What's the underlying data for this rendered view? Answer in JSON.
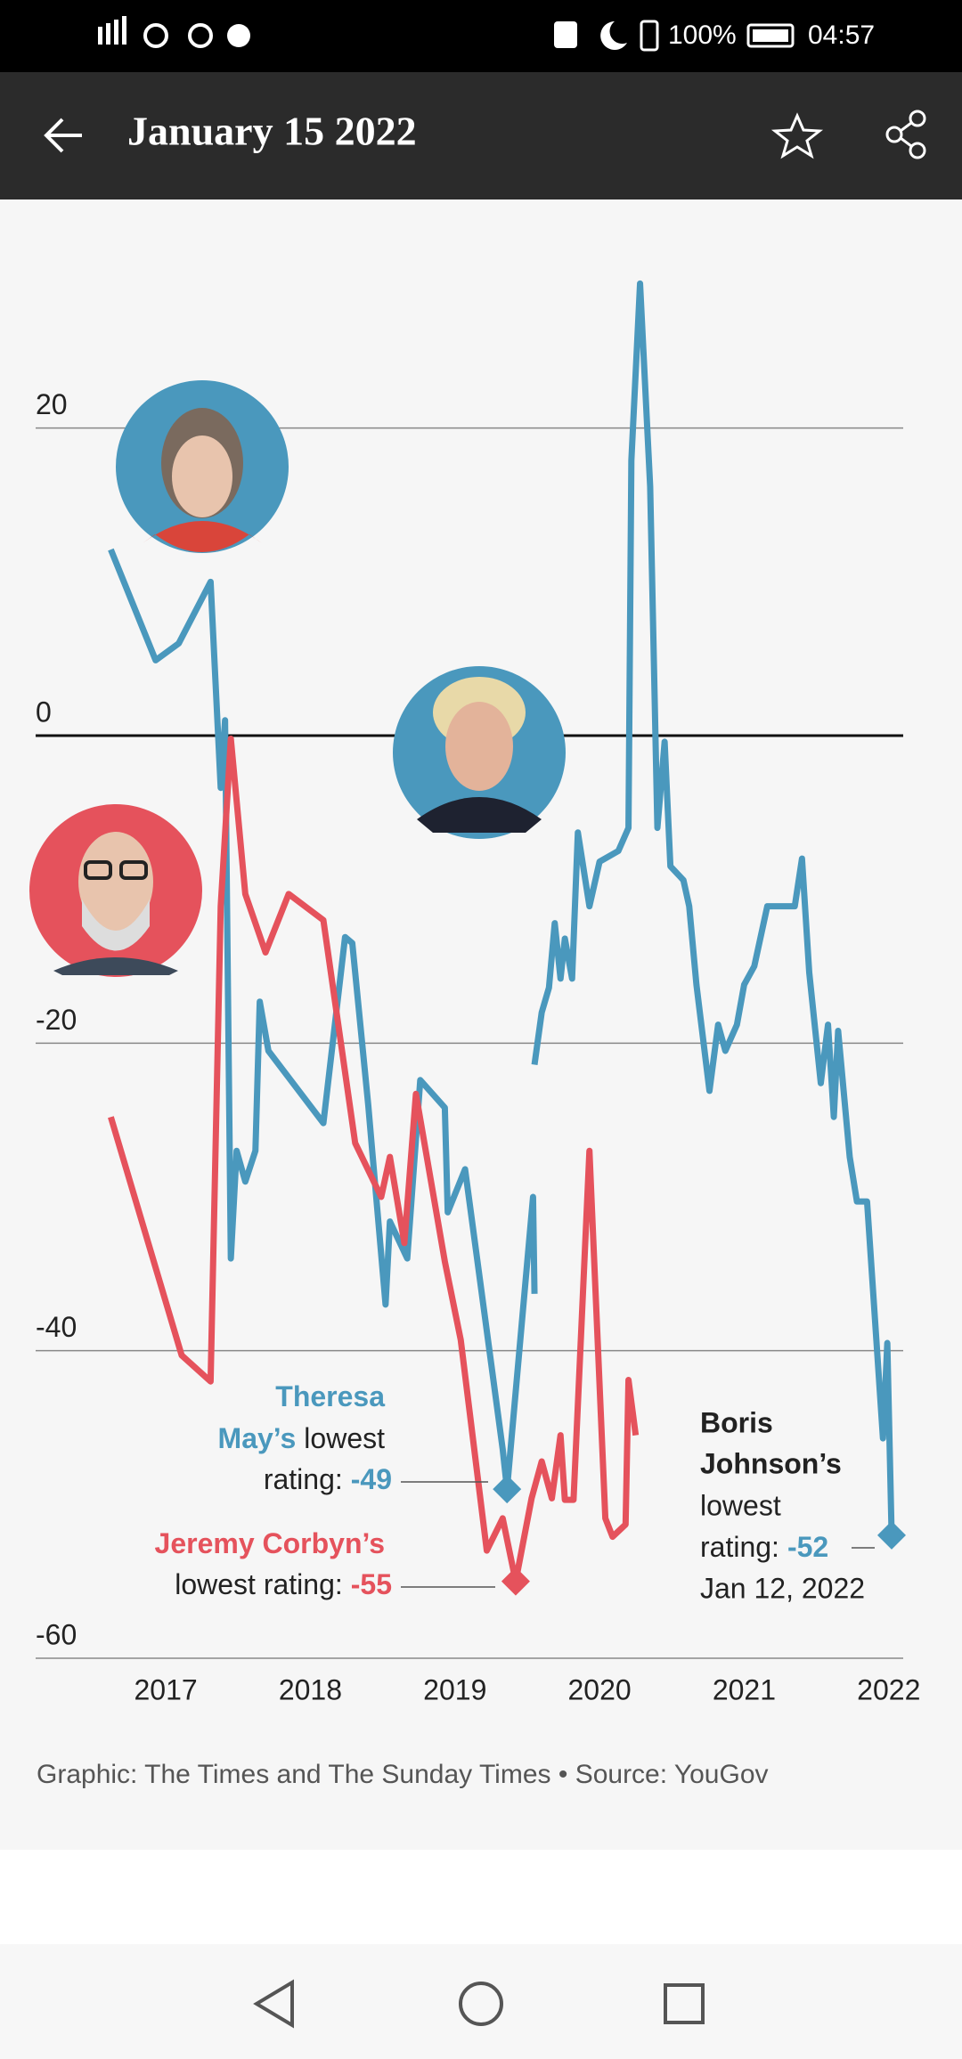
{
  "status_bar": {
    "battery": "100%",
    "time": "04:57"
  },
  "app_bar": {
    "title": "January 15 2022"
  },
  "chart_data": {
    "type": "line",
    "xlim": [
      2016.1,
      2022.1
    ],
    "xticks": [
      2017,
      2018,
      2019,
      2020,
      2021,
      2022
    ],
    "ylim": [
      -60,
      30
    ],
    "yticks": [
      20,
      0,
      -20,
      -40,
      -60
    ],
    "grid": true,
    "series": [
      {
        "color": "#4a98bd",
        "x": [
          2016.62,
          2016.93,
          2017.09,
          2017.31,
          2017.38,
          2017.41,
          2017.45,
          2017.49,
          2017.55,
          2017.62,
          2017.65,
          2017.71,
          2018.09,
          2018.24,
          2018.29,
          2018.4,
          2018.52,
          2018.55,
          2018.67,
          2018.76,
          2018.93,
          2018.95,
          2019.07,
          2019.33,
          2019.36,
          2019.54,
          2019.55
        ],
        "values": [
          12.1,
          4.9,
          6,
          10,
          -3.4,
          1,
          -34,
          -27,
          -29,
          -27,
          -17.3,
          -20.5,
          -25.2,
          -13.1,
          -13.5,
          -24,
          -37,
          -31.6,
          -34,
          -22.4,
          -24.2,
          -31,
          -28.2,
          -46.4,
          -49,
          -30,
          -36.3
        ]
      },
      {
        "color": "#e5525c",
        "x": [
          2016.62,
          2017.11,
          2017.31,
          2017.38,
          2017.45,
          2017.55,
          2017.69,
          2017.85,
          2018.09,
          2018.31,
          2018.49,
          2018.55,
          2018.65,
          2018.73,
          2018.93,
          2019.04,
          2019.22,
          2019.33,
          2019.42,
          2019.53,
          2019.6,
          2019.67,
          2019.73,
          2019.76,
          2019.82,
          2019.93,
          2020.04,
          2020.09,
          2020.18,
          2020.2,
          2020.25
        ],
        "values": [
          -24.8,
          -40.3,
          -42,
          -11.1,
          -0.2,
          -10.3,
          -14.1,
          -10.3,
          -12,
          -26.5,
          -30,
          -27.4,
          -33,
          -23.3,
          -34.2,
          -39.3,
          -53,
          -50.9,
          -55,
          -49.6,
          -47.2,
          -49.6,
          -45.5,
          -49.7,
          -49.7,
          -27,
          -50.9,
          -52.1,
          -51.3,
          -41.9,
          -45.5
        ]
      },
      {
        "color": "#4a98bd",
        "x": [
          2019.55,
          2019.6,
          2019.65,
          2019.69,
          2019.73,
          2019.76,
          2019.81,
          2019.85,
          2019.93,
          2020.0,
          2020.13,
          2020.2,
          2020.22,
          2020.28,
          2020.35,
          2020.4,
          2020.45,
          2020.49,
          2020.58,
          2020.62,
          2020.67,
          2020.76,
          2020.82,
          2020.87,
          2020.95,
          2021.0,
          2021.07,
          2021.16,
          2021.35,
          2021.4,
          2021.45,
          2021.53,
          2021.58,
          2021.62,
          2021.65,
          2021.73,
          2021.78,
          2021.85,
          2021.96,
          2021.99,
          2022.02
        ],
        "values": [
          -21.4,
          -18,
          -16.4,
          -12.2,
          -15.8,
          -13.2,
          -15.8,
          -6.3,
          -11.1,
          -8.2,
          -7.5,
          -6,
          17.9,
          29.4,
          16.2,
          -6,
          -0.4,
          -8.5,
          -9.4,
          -11.1,
          -16.2,
          -23.1,
          -18.8,
          -20.5,
          -18.8,
          -16.2,
          -15,
          -11.1,
          -11.1,
          -8,
          -15.4,
          -22.6,
          -18.8,
          -24.8,
          -19.2,
          -27.4,
          -30.3,
          -30.3,
          -45.7,
          -39.5,
          -52
        ]
      }
    ],
    "annotations": [
      {
        "name_1": "Theresa",
        "name_2": "May’s",
        "text_1": "lowest",
        "text_2": "rating:",
        "value": -49,
        "x": 2019.36,
        "color": "#4a98bd"
      },
      {
        "name_1": "Jeremy Corbyn’s",
        "text_1": "lowest rating:",
        "value": -55,
        "x": 2019.42,
        "color": "#e5525c"
      },
      {
        "name_1": "Boris",
        "name_2": "Johnson’s",
        "text_1": "lowest",
        "text_2": "rating:",
        "value": -52,
        "x": 2022.02,
        "date": "Jan 12, 2022",
        "color": "#4a98bd"
      }
    ],
    "source": "Graphic: The Times and The Sunday Times • Source: YouGov"
  }
}
